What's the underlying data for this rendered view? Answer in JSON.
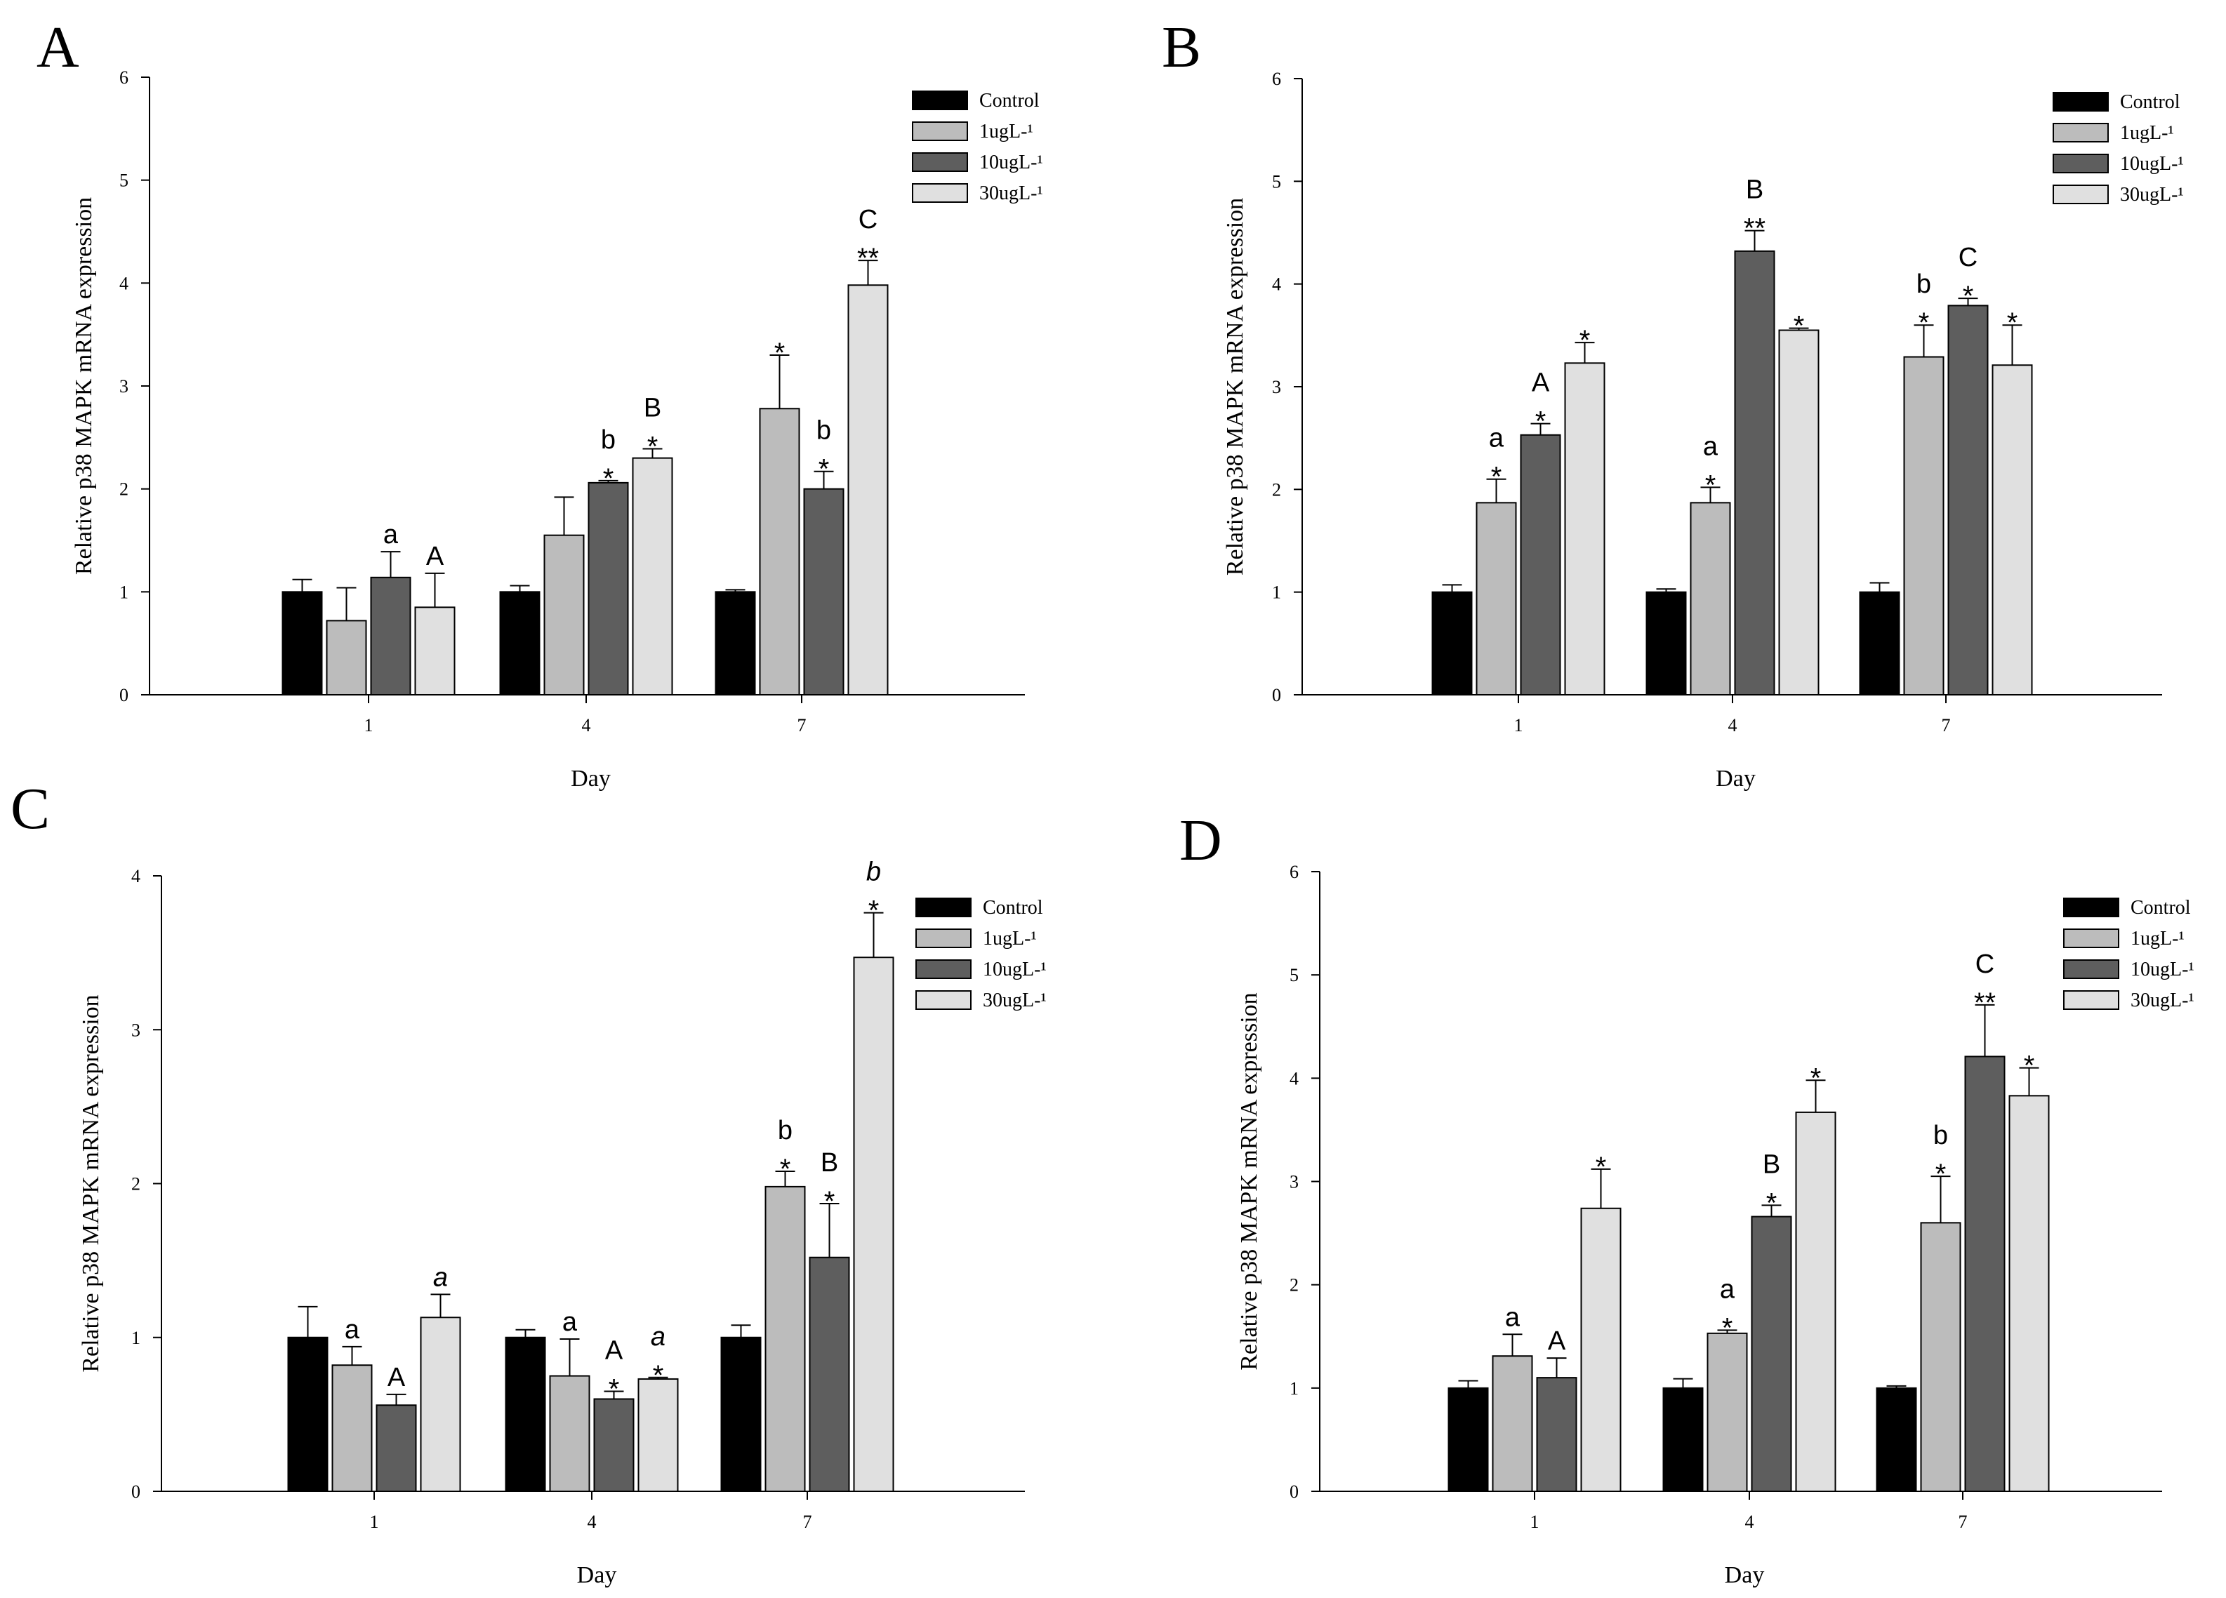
{
  "figure": {
    "x_label": "Day",
    "y_label": "Relative p38 MAPK mRNA expression",
    "legend": [
      {
        "label": "Control",
        "color": "#000000"
      },
      {
        "label": "1ugL-¹",
        "color": "#bcbcbc"
      },
      {
        "label": "10ugL-¹",
        "color": "#5e5e5e"
      },
      {
        "label": "30ugL-¹",
        "color": "#e0e0e0"
      }
    ]
  },
  "chart_data": [
    {
      "panel": "A",
      "type": "bar",
      "title": "",
      "xlabel": "Day",
      "ylabel": "Relative p38 MAPK mRNA expression",
      "categories": [
        "1",
        "4",
        "7"
      ],
      "ylim": [
        0,
        6
      ],
      "yticks": [
        0,
        1,
        2,
        3,
        4,
        5,
        6
      ],
      "series": [
        {
          "name": "Control",
          "values": [
            1.0,
            1.0,
            1.0
          ],
          "errors": [
            0.12,
            0.06,
            0.02
          ],
          "annotations": [
            [
              "",
              ""
            ],
            [
              "",
              ""
            ],
            [
              "",
              ""
            ]
          ]
        },
        {
          "name": "1ugL-¹",
          "values": [
            0.72,
            1.55,
            2.78
          ],
          "errors": [
            0.32,
            0.37,
            0.52
          ],
          "annotations": [
            [
              "",
              ""
            ],
            [
              "",
              ""
            ],
            [
              "*",
              ""
            ]
          ]
        },
        {
          "name": "10ugL-¹",
          "values": [
            1.14,
            2.06,
            2.0
          ],
          "errors": [
            0.25,
            0.02,
            0.17
          ],
          "annotations": [
            [
              "",
              "a"
            ],
            [
              "*",
              "b"
            ],
            [
              "*",
              "b"
            ]
          ]
        },
        {
          "name": "30ugL-¹",
          "values": [
            0.85,
            2.3,
            3.98
          ],
          "errors": [
            0.33,
            0.09,
            0.24
          ],
          "annotations": [
            [
              "",
              "A"
            ],
            [
              "*",
              "B"
            ],
            [
              "**",
              "C"
            ]
          ]
        }
      ]
    },
    {
      "panel": "B",
      "type": "bar",
      "title": "",
      "xlabel": "Day",
      "ylabel": "Relative p38 MAPK mRNA expression",
      "categories": [
        "1",
        "4",
        "7"
      ],
      "ylim": [
        0,
        6
      ],
      "yticks": [
        0,
        1,
        2,
        3,
        4,
        5,
        6
      ],
      "series": [
        {
          "name": "Control",
          "values": [
            1.0,
            1.0,
            1.0
          ],
          "errors": [
            0.07,
            0.03,
            0.09
          ],
          "annotations": [
            [
              "",
              ""
            ],
            [
              "",
              ""
            ],
            [
              "",
              ""
            ]
          ]
        },
        {
          "name": "1ugL-¹",
          "values": [
            1.87,
            1.87,
            3.29
          ],
          "errors": [
            0.23,
            0.15,
            0.31
          ],
          "annotations": [
            [
              "*",
              "a"
            ],
            [
              "*",
              "a"
            ],
            [
              "*",
              "b"
            ]
          ]
        },
        {
          "name": "10ugL-¹",
          "values": [
            2.53,
            4.32,
            3.79
          ],
          "errors": [
            0.11,
            0.2,
            0.07
          ],
          "annotations": [
            [
              "*",
              "A"
            ],
            [
              "**",
              "B"
            ],
            [
              "*",
              "C"
            ]
          ]
        },
        {
          "name": "30ugL-¹",
          "values": [
            3.23,
            3.55,
            3.21
          ],
          "errors": [
            0.2,
            0.02,
            0.39
          ],
          "annotations": [
            [
              "*",
              ""
            ],
            [
              "*",
              ""
            ],
            [
              "*",
              ""
            ]
          ]
        }
      ]
    },
    {
      "panel": "C",
      "type": "bar",
      "title": "",
      "xlabel": "Day",
      "ylabel": "Relative p38 MAPK mRNA expression",
      "categories": [
        "1",
        "4",
        "7"
      ],
      "ylim": [
        0,
        4
      ],
      "yticks": [
        0,
        1,
        2,
        3,
        4
      ],
      "series": [
        {
          "name": "Control",
          "values": [
            1.0,
            1.0,
            1.0
          ],
          "errors": [
            0.2,
            0.05,
            0.08
          ],
          "annotations": [
            [
              "",
              ""
            ],
            [
              "",
              ""
            ],
            [
              "",
              ""
            ]
          ]
        },
        {
          "name": "1ugL-¹",
          "values": [
            0.82,
            0.75,
            1.98
          ],
          "errors": [
            0.12,
            0.24,
            0.1
          ],
          "annotations": [
            [
              "",
              "a"
            ],
            [
              "",
              "a"
            ],
            [
              "*",
              "b"
            ]
          ]
        },
        {
          "name": "10ugL-¹",
          "values": [
            0.56,
            0.6,
            1.52
          ],
          "errors": [
            0.07,
            0.05,
            0.35
          ],
          "annotations": [
            [
              "",
              "A"
            ],
            [
              "*",
              "A"
            ],
            [
              "*",
              "B"
            ]
          ]
        },
        {
          "name": "30ugL-¹",
          "values": [
            1.13,
            0.73,
            3.47
          ],
          "errors": [
            0.15,
            0.01,
            0.29
          ],
          "annotations": [
            [
              "",
              "a"
            ],
            [
              "*",
              "a"
            ],
            [
              "*",
              "b"
            ]
          ],
          "italic_letters": true
        }
      ]
    },
    {
      "panel": "D",
      "type": "bar",
      "title": "",
      "xlabel": "Day",
      "ylabel": "Relative p38 MAPK mRNA expression",
      "categories": [
        "1",
        "4",
        "7"
      ],
      "ylim": [
        0,
        6
      ],
      "yticks": [
        0,
        1,
        2,
        3,
        4,
        5,
        6
      ],
      "series": [
        {
          "name": "Control",
          "values": [
            1.0,
            1.0,
            1.0
          ],
          "errors": [
            0.07,
            0.09,
            0.02
          ],
          "annotations": [
            [
              "",
              ""
            ],
            [
              "",
              ""
            ],
            [
              "",
              ""
            ]
          ]
        },
        {
          "name": "1ugL-¹",
          "values": [
            1.31,
            1.53,
            2.6
          ],
          "errors": [
            0.21,
            0.03,
            0.45
          ],
          "annotations": [
            [
              "",
              "a"
            ],
            [
              "*",
              "a"
            ],
            [
              "*",
              "b"
            ]
          ]
        },
        {
          "name": "10ugL-¹",
          "values": [
            1.1,
            2.66,
            4.21
          ],
          "errors": [
            0.19,
            0.11,
            0.5
          ],
          "annotations": [
            [
              "",
              "A"
            ],
            [
              "*",
              "B"
            ],
            [
              "**",
              "C"
            ]
          ]
        },
        {
          "name": "30ugL-¹",
          "values": [
            2.74,
            3.67,
            3.83
          ],
          "errors": [
            0.38,
            0.31,
            0.27
          ],
          "annotations": [
            [
              "*",
              ""
            ],
            [
              "*",
              ""
            ],
            [
              "*",
              ""
            ]
          ]
        }
      ]
    }
  ]
}
